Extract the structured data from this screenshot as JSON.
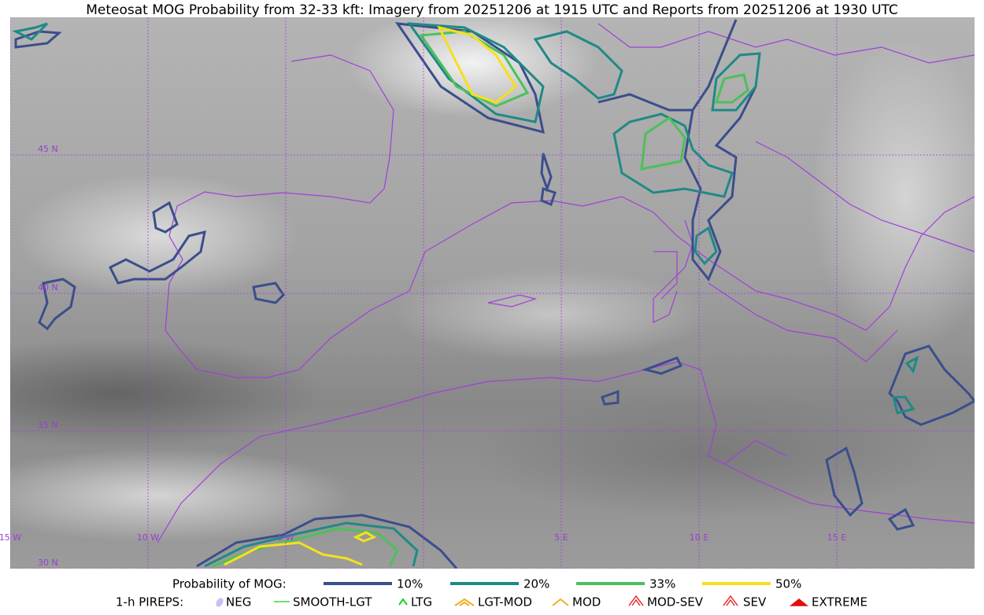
{
  "title": "Meteosat MOG Probability from 32-33 kft: Imagery from 20251206 at 1915 UTC and Reports from 20251206 at 1930 UTC",
  "map": {
    "lat_labels": [
      "45 N",
      "40 N",
      "35 N",
      "30 N"
    ],
    "lon_labels": [
      "15 W",
      "10 W",
      "5 W",
      "5 E",
      "10 E",
      "15 E"
    ]
  },
  "legend": {
    "probability": {
      "label": "Probability of MOG:",
      "items": [
        {
          "label": "10%",
          "color": "#3b4e8c"
        },
        {
          "label": "20%",
          "color": "#1f8a86"
        },
        {
          "label": "33%",
          "color": "#4cc05a"
        },
        {
          "label": "50%",
          "color": "#f5e01e"
        }
      ]
    },
    "pireps": {
      "label": "1-h PIREPS:",
      "items": [
        {
          "label": "NEG",
          "color": "#c6c0f2"
        },
        {
          "label": "SMOOTH-LGT",
          "color": "#3ad83a"
        },
        {
          "label": "LTG",
          "color": "#1fcf1f"
        },
        {
          "label": "LGT-MOD",
          "color": "#f0b020"
        },
        {
          "label": "MOD",
          "color": "#f0b020"
        },
        {
          "label": "MOD-SEV",
          "color": "#e53030"
        },
        {
          "label": "SEV",
          "color": "#e53030"
        },
        {
          "label": "EXTREME",
          "color": "#e01010"
        }
      ]
    }
  }
}
